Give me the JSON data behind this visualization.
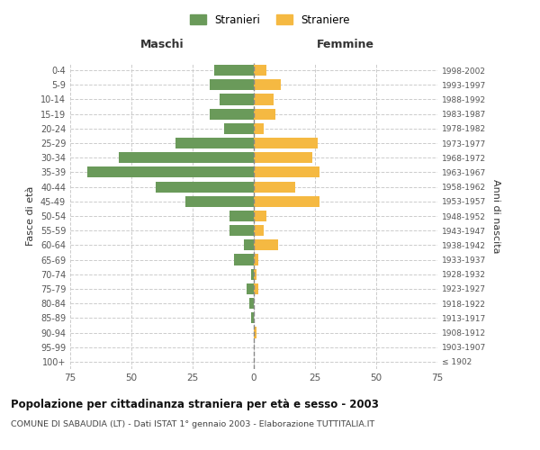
{
  "age_groups": [
    "100+",
    "95-99",
    "90-94",
    "85-89",
    "80-84",
    "75-79",
    "70-74",
    "65-69",
    "60-64",
    "55-59",
    "50-54",
    "45-49",
    "40-44",
    "35-39",
    "30-34",
    "25-29",
    "20-24",
    "15-19",
    "10-14",
    "5-9",
    "0-4"
  ],
  "birth_years": [
    "≤ 1902",
    "1903-1907",
    "1908-1912",
    "1913-1917",
    "1918-1922",
    "1923-1927",
    "1928-1932",
    "1933-1937",
    "1938-1942",
    "1943-1947",
    "1948-1952",
    "1953-1957",
    "1958-1962",
    "1963-1967",
    "1968-1972",
    "1973-1977",
    "1978-1982",
    "1983-1987",
    "1988-1992",
    "1993-1997",
    "1998-2002"
  ],
  "maschi": [
    0,
    0,
    0,
    1,
    2,
    3,
    1,
    8,
    4,
    10,
    10,
    28,
    40,
    68,
    55,
    32,
    12,
    18,
    14,
    18,
    16
  ],
  "femmine": [
    0,
    0,
    1,
    0,
    0,
    2,
    1,
    2,
    10,
    4,
    5,
    27,
    17,
    27,
    24,
    26,
    4,
    9,
    8,
    11,
    5
  ],
  "maschi_color": "#6a9a5a",
  "femmine_color": "#f5b942",
  "background_color": "#ffffff",
  "grid_color": "#cccccc",
  "title": "Popolazione per cittadinanza straniera per età e sesso - 2003",
  "subtitle": "COMUNE DI SABAUDIA (LT) - Dati ISTAT 1° gennaio 2003 - Elaborazione TUTTITALIA.IT",
  "ylabel_left": "Fasce di età",
  "ylabel_right": "Anni di nascita",
  "xlabel_left": "Maschi",
  "xlabel_right": "Femmine",
  "legend_stranieri": "Stranieri",
  "legend_straniere": "Straniere",
  "xlim": 75,
  "bar_height": 0.75
}
